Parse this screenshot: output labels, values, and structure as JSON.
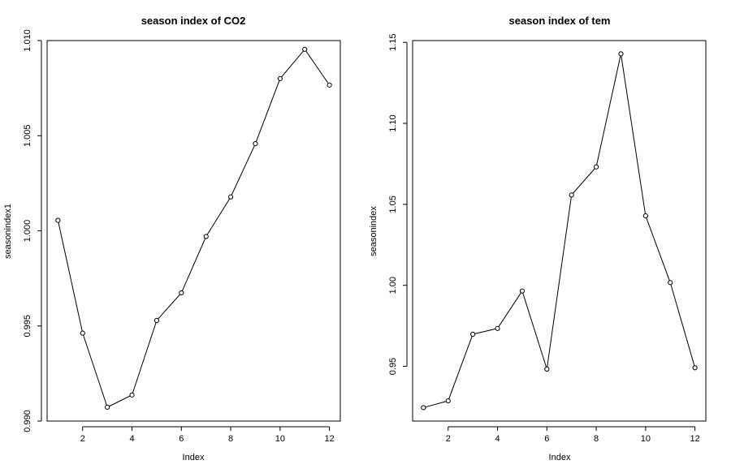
{
  "chart_data": [
    {
      "type": "line",
      "title": "season index of CO2",
      "xlabel": "Index",
      "ylabel": "seasonindex1",
      "x": [
        1,
        2,
        3,
        4,
        5,
        6,
        7,
        8,
        9,
        10,
        11,
        12
      ],
      "values": [
        1.00055,
        0.99462,
        0.99073,
        0.99137,
        0.99529,
        0.99674,
        0.9997,
        1.00178,
        1.00458,
        1.008,
        1.00954,
        1.00766
      ],
      "xlim": [
        0.56,
        12.44
      ],
      "ylim": [
        0.99,
        1.01
      ],
      "xticks": [
        2,
        4,
        6,
        8,
        10,
        12
      ],
      "xtick_labels": [
        "2",
        "4",
        "6",
        "8",
        "10",
        "12"
      ],
      "yticks": [
        0.99,
        0.995,
        1.0,
        1.005,
        1.01
      ],
      "ytick_labels": [
        "0.990",
        "0.995",
        "1.000",
        "1.005",
        "1.010"
      ],
      "grid": false,
      "marker": "open-circle"
    },
    {
      "type": "line",
      "title": "season index of tem",
      "xlabel": "Index",
      "ylabel": "seasonindex",
      "x": [
        1,
        2,
        3,
        4,
        5,
        6,
        7,
        8,
        9,
        10,
        11,
        12
      ],
      "values": [
        0.9245,
        0.9287,
        0.9698,
        0.9734,
        0.9965,
        0.9483,
        1.0558,
        1.0731,
        1.1429,
        1.0429,
        1.0017,
        0.9491
      ],
      "xlim": [
        0.56,
        12.44
      ],
      "ylim": [
        0.9162,
        1.1511
      ],
      "xticks": [
        2,
        4,
        6,
        8,
        10,
        12
      ],
      "xtick_labels": [
        "2",
        "4",
        "6",
        "8",
        "10",
        "12"
      ],
      "yticks": [
        0.95,
        1.0,
        1.05,
        1.1,
        1.15
      ],
      "ytick_labels": [
        "0.95",
        "1.00",
        "1.05",
        "1.10",
        "1.15"
      ],
      "grid": false,
      "marker": "open-circle"
    }
  ]
}
